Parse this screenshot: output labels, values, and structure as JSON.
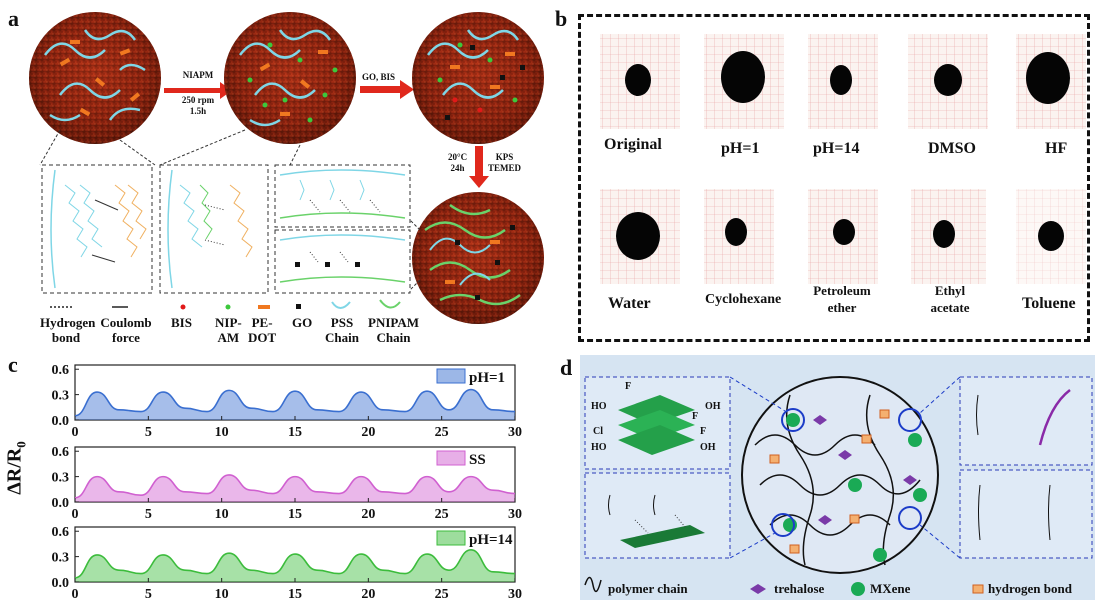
{
  "panels": {
    "a": {
      "label": "a",
      "arrow1_lines": [
        "NIAPM",
        "250 rpm",
        "1.5h"
      ],
      "arrow2_label": "GO, BIS",
      "arrow3_lines_left": [
        "20°C",
        "24h"
      ],
      "arrow3_lines_right": [
        "KPS",
        "TEMED"
      ],
      "legend": [
        {
          "line1": "Hydrogen",
          "line2": "bond",
          "color": "#222222"
        },
        {
          "line1": "Coulomb",
          "line2": "force",
          "color": "#222222"
        },
        {
          "line1": "BIS",
          "line2": "",
          "color": "#e11919"
        },
        {
          "line1": "NIP-",
          "line2": "AM",
          "color": "#3cc83c"
        },
        {
          "line1": "PE-",
          "line2": "DOT",
          "color": "#f07820"
        },
        {
          "line1": "GO",
          "line2": "",
          "color": "#111111"
        },
        {
          "line1": "PSS",
          "line2": "Chain",
          "color": "#55c8d8"
        },
        {
          "line1": "PNIPAM",
          "line2": "Chain",
          "color": "#6ad26a"
        }
      ]
    },
    "b": {
      "label": "b",
      "samples_row1": [
        "Original",
        "pH=1",
        "pH=14",
        "DMSO",
        "HF"
      ],
      "samples_row2": [
        "Water",
        "Cyclohexane",
        "Petroleum ether",
        "Ethyl acetate",
        "Toluene"
      ]
    },
    "c": {
      "label": "c",
      "ylabel": "ΔR/R",
      "ylabel_sub": "0"
    },
    "d": {
      "label": "d",
      "legend": [
        "polymer chain",
        "trehalose",
        "MXene",
        "hydrogen bond"
      ],
      "left_top_labels": [
        "F",
        "HO",
        "F",
        "OH",
        "Cl",
        "F",
        "HO",
        "OH"
      ]
    }
  },
  "chart_data": [
    {
      "type": "line",
      "series": [
        {
          "name": "pH=1",
          "color": "#3a6fd0"
        }
      ],
      "x": [
        0,
        1.5,
        3,
        4.5,
        6,
        7.5,
        9,
        10.5,
        12,
        13.5,
        15,
        16.5,
        18,
        19.5,
        21,
        22.5,
        24,
        25.5,
        27,
        28.5,
        30
      ],
      "values": [
        0.05,
        0.33,
        0.12,
        0.1,
        0.33,
        0.14,
        0.1,
        0.35,
        0.14,
        0.1,
        0.34,
        0.12,
        0.1,
        0.33,
        0.12,
        0.1,
        0.34,
        0.12,
        0.36,
        0.12,
        0.1
      ],
      "xlim": [
        0,
        30
      ],
      "ylim": [
        0,
        0.65
      ],
      "xticks": [
        0,
        5,
        10,
        15,
        20,
        25,
        30
      ],
      "yticks": [
        0.0,
        0.3,
        0.6
      ]
    },
    {
      "type": "line",
      "series": [
        {
          "name": "SS",
          "color": "#d060d0"
        }
      ],
      "x": [
        0,
        1.5,
        3,
        4.5,
        6,
        7.5,
        9,
        10.5,
        12,
        13.5,
        15,
        16.5,
        18,
        19.5,
        21,
        22.5,
        24,
        25.5,
        27,
        28.5,
        30
      ],
      "values": [
        0.05,
        0.3,
        0.12,
        0.08,
        0.3,
        0.12,
        0.1,
        0.32,
        0.14,
        0.1,
        0.3,
        0.12,
        0.1,
        0.3,
        0.12,
        0.1,
        0.3,
        0.12,
        0.3,
        0.14,
        0.1
      ],
      "xlim": [
        0,
        30
      ],
      "ylim": [
        0,
        0.65
      ],
      "xticks": [
        0,
        5,
        10,
        15,
        20,
        25,
        30
      ],
      "yticks": [
        0.0,
        0.3,
        0.6
      ]
    },
    {
      "type": "line",
      "series": [
        {
          "name": "pH=14",
          "color": "#3cbc3c"
        }
      ],
      "x": [
        0,
        1.5,
        3,
        4.5,
        6,
        7.5,
        9,
        10.5,
        12,
        13.5,
        15,
        16.5,
        18,
        19.5,
        21,
        22.5,
        24,
        25.5,
        27,
        28.5,
        30
      ],
      "values": [
        0.05,
        0.32,
        0.14,
        0.1,
        0.32,
        0.14,
        0.1,
        0.34,
        0.14,
        0.1,
        0.33,
        0.14,
        0.1,
        0.33,
        0.14,
        0.1,
        0.33,
        0.14,
        0.38,
        0.12,
        0.1
      ],
      "xlim": [
        0,
        30
      ],
      "ylim": [
        0,
        0.65
      ],
      "xticks": [
        0,
        5,
        10,
        15,
        20,
        25,
        30
      ],
      "yticks": [
        0.0,
        0.3,
        0.6
      ]
    }
  ]
}
